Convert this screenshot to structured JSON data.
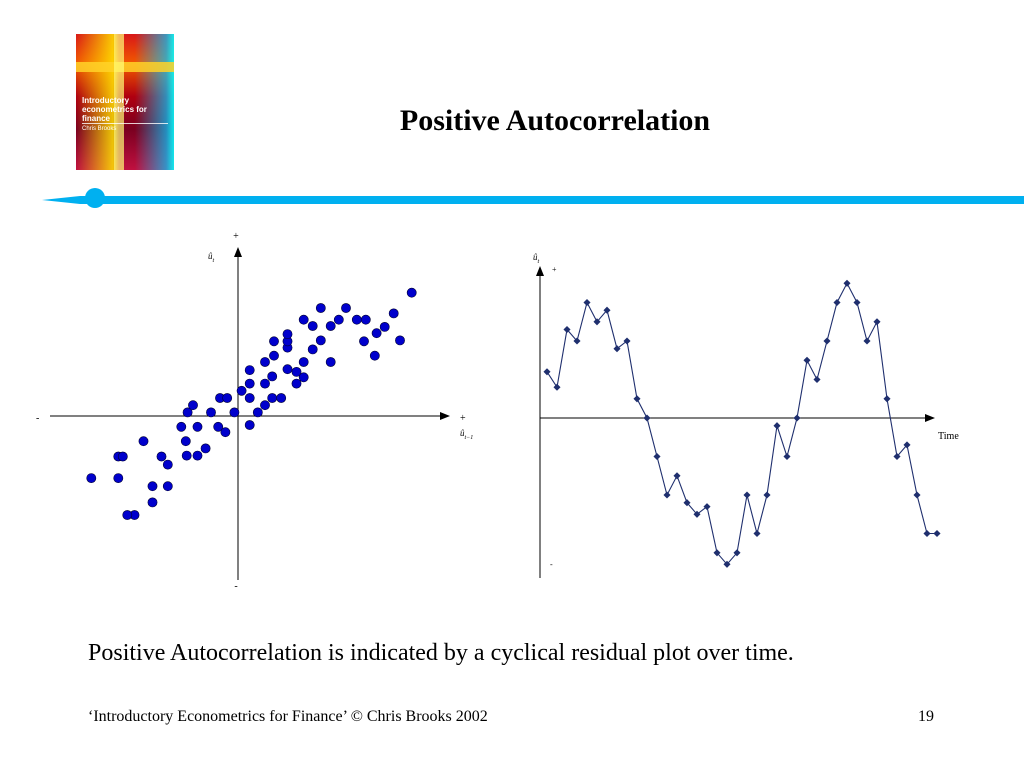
{
  "book": {
    "title": "Introductory econometrics for finance",
    "author": "Chris Brooks"
  },
  "slide": {
    "title": "Positive Autocorrelation",
    "caption": "Positive Autocorrelation is indicated by a cyclical residual plot over time.",
    "footer_left": "‘Introductory Econometrics for Finance’ © Chris Brooks 2002",
    "page_number": "19"
  },
  "colors": {
    "accent_line": "#00b0f0",
    "scatter_fill": "#0000cc",
    "line_series": "#1f2f6e"
  },
  "chart_data": [
    {
      "type": "scatter",
      "xlabel": "û_{t−1}",
      "ylabel": "û_t",
      "x_positive_label": "+",
      "x_negative_label": "-",
      "y_positive_label": "+",
      "y_negative_label": "-",
      "xlim": [
        -16.5,
        22.5
      ],
      "ylim": [
        -17.7,
        19.4
      ],
      "grid": false,
      "points": [
        [
          -16.3,
          -6.9
        ],
        [
          -13.3,
          -4.5
        ],
        [
          -12.8,
          -4.5
        ],
        [
          -13.3,
          -6.9
        ],
        [
          -11.5,
          -11.0
        ],
        [
          -12.3,
          -11.0
        ],
        [
          -10.5,
          -2.8
        ],
        [
          -9.5,
          -7.8
        ],
        [
          -9.5,
          -9.6
        ],
        [
          -8.5,
          -4.5
        ],
        [
          -7.8,
          -7.8
        ],
        [
          -7.8,
          -5.4
        ],
        [
          -6.3,
          -1.2
        ],
        [
          -5.7,
          -4.4
        ],
        [
          -5.8,
          -2.8
        ],
        [
          -5.6,
          0.4
        ],
        [
          -5.0,
          1.2
        ],
        [
          -4.5,
          -1.2
        ],
        [
          -4.5,
          -4.4
        ],
        [
          -3.6,
          -3.6
        ],
        [
          -3.0,
          0.4
        ],
        [
          -2.2,
          -1.2
        ],
        [
          -2.0,
          2.0
        ],
        [
          -1.4,
          -1.8
        ],
        [
          -1.2,
          2.0
        ],
        [
          -0.4,
          0.4
        ],
        [
          0.4,
          2.8
        ],
        [
          1.3,
          2.0
        ],
        [
          1.3,
          3.6
        ],
        [
          1.3,
          5.1
        ],
        [
          1.3,
          -1.0
        ],
        [
          2.2,
          0.4
        ],
        [
          3.0,
          1.2
        ],
        [
          3.0,
          3.6
        ],
        [
          3.0,
          6.0
        ],
        [
          3.8,
          4.4
        ],
        [
          3.8,
          2.0
        ],
        [
          4.0,
          6.7
        ],
        [
          4.0,
          8.3
        ],
        [
          4.8,
          2.0
        ],
        [
          5.5,
          5.2
        ],
        [
          5.5,
          7.6
        ],
        [
          5.5,
          8.3
        ],
        [
          5.5,
          9.1
        ],
        [
          6.5,
          3.6
        ],
        [
          6.5,
          4.9
        ],
        [
          7.3,
          6.0
        ],
        [
          7.3,
          10.7
        ],
        [
          7.3,
          4.3
        ],
        [
          8.3,
          10.0
        ],
        [
          8.3,
          7.4
        ],
        [
          9.2,
          12.0
        ],
        [
          9.2,
          8.4
        ],
        [
          10.3,
          6.0
        ],
        [
          10.3,
          10.0
        ],
        [
          11.2,
          10.7
        ],
        [
          12.0,
          12.0
        ],
        [
          13.2,
          10.7
        ],
        [
          14.0,
          8.3
        ],
        [
          14.2,
          10.7
        ],
        [
          15.2,
          6.7
        ],
        [
          15.4,
          9.2
        ],
        [
          16.3,
          9.9
        ],
        [
          17.3,
          11.4
        ],
        [
          18.0,
          8.4
        ],
        [
          19.3,
          13.7
        ]
      ]
    },
    {
      "type": "line",
      "xlabel": "Time",
      "ylabel": "û_t",
      "y_positive_label": "+",
      "y_negative_label": "-",
      "ylim": [
        -4.9,
        4.6
      ],
      "grid": false,
      "x": [
        1,
        2,
        3,
        4,
        5,
        6,
        7,
        8,
        9,
        10,
        11,
        12,
        13,
        14,
        15,
        16,
        17,
        18,
        19,
        20,
        21,
        22,
        23,
        24,
        25,
        26,
        27,
        28,
        29,
        30,
        31,
        32,
        33,
        34,
        35,
        36,
        37,
        38,
        39,
        40
      ],
      "values": [
        1.2,
        0.8,
        2.3,
        2.0,
        3.0,
        2.5,
        2.8,
        1.8,
        2.0,
        0.5,
        0.0,
        -1.0,
        -2.0,
        -1.5,
        -2.2,
        -2.5,
        -2.3,
        -3.5,
        -3.8,
        -3.5,
        -2.0,
        -3.0,
        -2.0,
        -0.2,
        -1.0,
        0.0,
        1.5,
        1.0,
        2.0,
        3.0,
        3.5,
        3.0,
        2.0,
        2.5,
        0.5,
        -1.0,
        -0.7,
        -2.0,
        -3.0,
        -3.0
      ]
    }
  ]
}
